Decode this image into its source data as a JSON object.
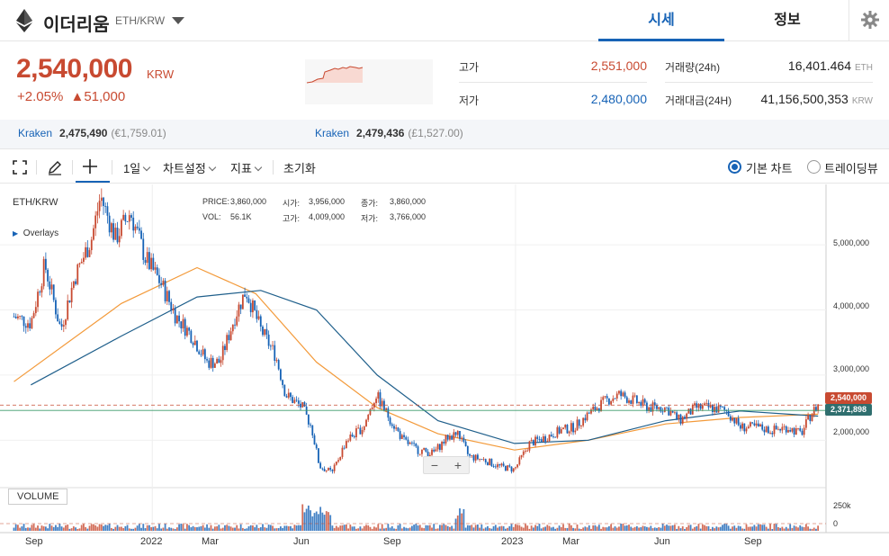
{
  "header": {
    "coin_name": "이더리움",
    "pair": "ETH/KRW",
    "tabs": [
      "시세",
      "정보"
    ],
    "active_tab": "시세"
  },
  "summary": {
    "price": "2,540,000",
    "price_unit": "KRW",
    "change_pct": "+2.05%",
    "change_arrow": "▲",
    "change_amount": "51,000",
    "high_label": "고가",
    "high_value": "2,551,000",
    "low_label": "저가",
    "low_value": "2,480,000",
    "volume_label": "거래량(24h)",
    "volume_value": "16,401.464",
    "volume_unit": "ETH",
    "amount_label": "거래대금(24H)",
    "amount_value": "41,156,500,353",
    "amount_unit": "KRW",
    "colors": {
      "up": "#c84a31",
      "down": "#1763b6"
    }
  },
  "exchanges": [
    {
      "name": "Kraken",
      "price": "2,475,490",
      "fx": "(€1,759.01)"
    },
    {
      "name": "Kraken",
      "price": "2,479,436",
      "fx": "(£1,527.00)"
    }
  ],
  "toolbar": {
    "interval": "1일",
    "chart_settings": "차트설정",
    "indicators": "지표",
    "reset": "초기화",
    "basic_chart": "기본 차트",
    "tradingview": "트레이딩뷰",
    "selected_view": "기본 차트"
  },
  "chart": {
    "symbol": "ETH/KRW",
    "overlays": "Overlays",
    "info": {
      "price_label": "PRICE:",
      "price": "3,860,000",
      "open_label": "시가:",
      "open": "3,956,000",
      "close_label": "종가:",
      "close": "3,860,000",
      "vol_label": "VOL:",
      "vol": "56.1K",
      "high_label": "고가:",
      "high": "4,009,000",
      "low_label": "저가:",
      "low": "3,766,000"
    },
    "y_labels": [
      "5,000,000",
      "4,000,000",
      "3,000,000",
      "2,000,000"
    ],
    "vol_labels": [
      "250k",
      "0"
    ],
    "x_labels": [
      "Sep",
      "2022",
      "Mar",
      "Jun",
      "Sep",
      "2023",
      "Mar",
      "Jun",
      "Sep"
    ],
    "last_price_tag": "2,540,000",
    "ma_tag": "2,371,898",
    "volume_label": "VOLUME",
    "zoom_minus": "−",
    "zoom_plus": "+"
  },
  "chart_data": {
    "type": "line",
    "title": "ETH/KRW",
    "series": [
      {
        "name": "ETH/KRW",
        "x": [
          "2021-08-15",
          "2021-09-01",
          "2021-09-15",
          "2021-10-01",
          "2021-10-15",
          "2021-11-01",
          "2021-11-10",
          "2021-11-25",
          "2021-12-10",
          "2021-12-25",
          "2022-01-10",
          "2022-01-25",
          "2022-02-10",
          "2022-02-25",
          "2022-03-10",
          "2022-03-25",
          "2022-04-05",
          "2022-04-20",
          "2022-05-05",
          "2022-05-15",
          "2022-06-01",
          "2022-06-10",
          "2022-06-18",
          "2022-07-01",
          "2022-07-15",
          "2022-08-01",
          "2022-08-14",
          "2022-08-25",
          "2022-09-10",
          "2022-09-25",
          "2022-10-10",
          "2022-10-25",
          "2022-11-05",
          "2022-11-15",
          "2022-11-30",
          "2022-12-15",
          "2022-12-31",
          "2023-01-15",
          "2023-02-01",
          "2023-02-15",
          "2023-03-01",
          "2023-03-15",
          "2023-04-01",
          "2023-04-15",
          "2023-05-01",
          "2023-05-15",
          "2023-06-01",
          "2023-06-15",
          "2023-07-01",
          "2023-07-15",
          "2023-08-01",
          "2023-08-15",
          "2023-09-01",
          "2023-09-15",
          "2023-10-01",
          "2023-10-15",
          "2023-10-25",
          "2023-11-01"
        ],
        "values": [
          3900000,
          3800000,
          4700000,
          3700000,
          4500000,
          5100000,
          5750000,
          5100000,
          5500000,
          4800000,
          4400000,
          3900000,
          3600000,
          3200000,
          3200000,
          3900000,
          4300000,
          3700000,
          3300000,
          2700000,
          2500000,
          2200000,
          1600000,
          1500000,
          2000000,
          2200000,
          2700000,
          2400000,
          2000000,
          1850000,
          1800000,
          2050000,
          2100000,
          1750000,
          1700000,
          1600000,
          1550000,
          1950000,
          2050000,
          2150000,
          2200000,
          2400000,
          2600000,
          2700000,
          2600000,
          2500000,
          2500000,
          2300000,
          2500000,
          2500000,
          2450000,
          2200000,
          2200000,
          2150000,
          2200000,
          2100000,
          2400000,
          2540000
        ]
      },
      {
        "name": "MA (orange)",
        "x": [
          "2021-08-15",
          "2021-12-01",
          "2022-02-15",
          "2022-04-15",
          "2022-06-15",
          "2022-08-15",
          "2022-10-15",
          "2022-12-31",
          "2023-03-15",
          "2023-06-01",
          "2023-08-15",
          "2023-11-01"
        ],
        "values": [
          2900000,
          4100000,
          4650000,
          4250000,
          3200000,
          2500000,
          2100000,
          1850000,
          2000000,
          2250000,
          2350000,
          2400000
        ]
      },
      {
        "name": "MA (blue)",
        "x": [
          "2021-09-01",
          "2021-12-01",
          "2022-02-15",
          "2022-04-20",
          "2022-06-15",
          "2022-08-15",
          "2022-10-15",
          "2022-12-31",
          "2023-03-15",
          "2023-06-01",
          "2023-08-15",
          "2023-11-01"
        ],
        "values": [
          2850000,
          3600000,
          4200000,
          4300000,
          4000000,
          3000000,
          2300000,
          1950000,
          2000000,
          2300000,
          2450000,
          2370000
        ]
      }
    ],
    "volume_approx": "low background volume with spikes near 2022-06 and 2022-11",
    "ylim": [
      1300000,
      5900000
    ],
    "y_ticks": [
      2000000,
      3000000,
      4000000,
      5000000
    ],
    "last_price": 2540000,
    "grid": true
  }
}
